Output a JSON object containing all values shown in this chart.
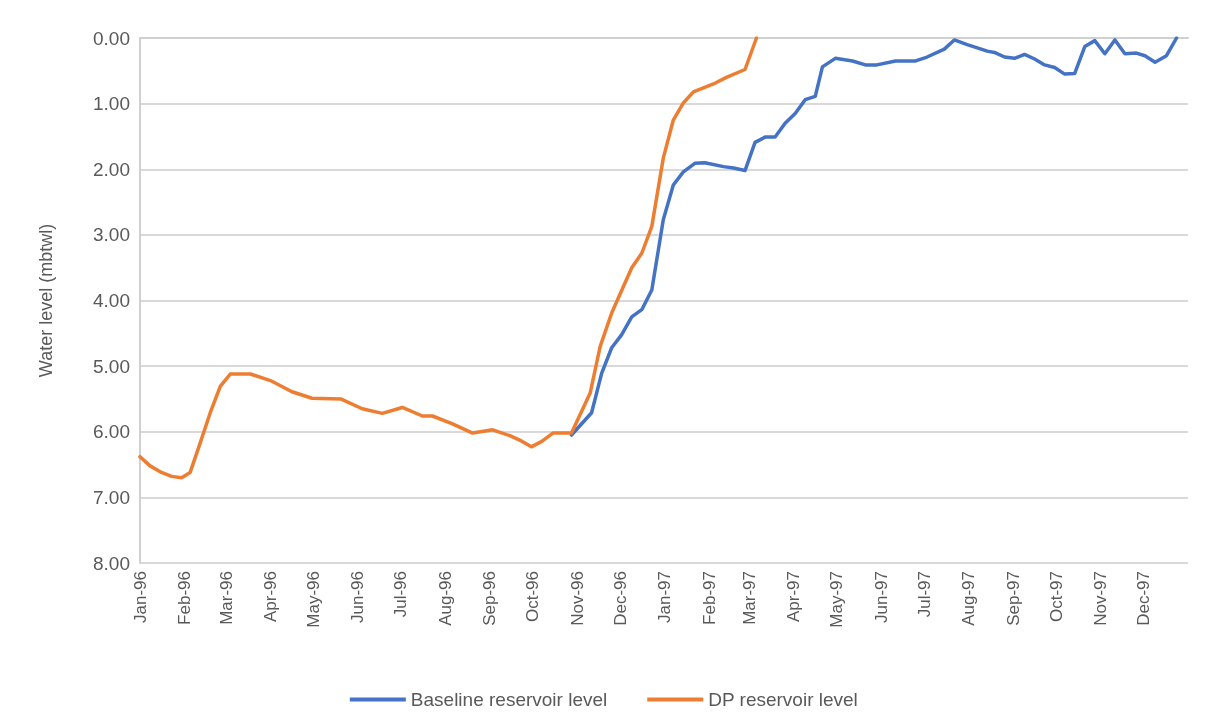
{
  "chart_data": {
    "type": "line",
    "ylabel": "Water level (mbtwl)",
    "ylim": [
      8,
      0
    ],
    "yticks": [
      {
        "value": 0,
        "label": "0.00"
      },
      {
        "value": 1,
        "label": "1.00"
      },
      {
        "value": 2,
        "label": "2.00"
      },
      {
        "value": 3,
        "label": "3.00"
      },
      {
        "value": 4,
        "label": "4.00"
      },
      {
        "value": 5,
        "label": "5.00"
      },
      {
        "value": 6,
        "label": "6.00"
      },
      {
        "value": 7,
        "label": "7.00"
      },
      {
        "value": 8,
        "label": "8.00"
      }
    ],
    "xlim": [
      "1996-01-01",
      "1998-01-01"
    ],
    "xticks": [
      {
        "value": "1996-01-01",
        "label": "Jan-96"
      },
      {
        "value": "1996-02-01",
        "label": "Feb-96"
      },
      {
        "value": "1996-03-01",
        "label": "Mar-96"
      },
      {
        "value": "1996-04-01",
        "label": "Apr-96"
      },
      {
        "value": "1996-05-01",
        "label": "May-96"
      },
      {
        "value": "1996-06-01",
        "label": "Jun-96"
      },
      {
        "value": "1996-07-01",
        "label": "Jul-96"
      },
      {
        "value": "1996-08-01",
        "label": "Aug-96"
      },
      {
        "value": "1996-09-01",
        "label": "Sep-96"
      },
      {
        "value": "1996-10-01",
        "label": "Oct-96"
      },
      {
        "value": "1996-11-01",
        "label": "Nov-96"
      },
      {
        "value": "1996-12-01",
        "label": "Dec-96"
      },
      {
        "value": "1997-01-01",
        "label": "Jan-97"
      },
      {
        "value": "1997-02-01",
        "label": "Feb-97"
      },
      {
        "value": "1997-03-01",
        "label": "Mar-97"
      },
      {
        "value": "1997-04-01",
        "label": "Apr-97"
      },
      {
        "value": "1997-05-01",
        "label": "May-97"
      },
      {
        "value": "1997-06-01",
        "label": "Jun-97"
      },
      {
        "value": "1997-07-01",
        "label": "Jul-97"
      },
      {
        "value": "1997-08-01",
        "label": "Aug-97"
      },
      {
        "value": "1997-09-01",
        "label": "Sep-97"
      },
      {
        "value": "1997-10-01",
        "label": "Oct-97"
      },
      {
        "value": "1997-11-01",
        "label": "Nov-97"
      },
      {
        "value": "1997-12-01",
        "label": "Dec-97"
      }
    ],
    "grid": "y",
    "legend": "bottom",
    "marker": "none",
    "line_style": "solid",
    "series": [
      {
        "name": "Baseline reservoir level",
        "color": "#4472c4",
        "x": [
          "1996-10-28",
          "1996-11-11",
          "1996-11-18",
          "1996-11-25",
          "1996-12-02",
          "1996-12-09",
          "1996-12-16",
          "1996-12-23",
          "1996-12-31",
          "1997-01-07",
          "1997-01-14",
          "1997-01-22",
          "1997-01-29",
          "1997-02-11",
          "1997-02-18",
          "1997-02-26",
          "1997-03-05",
          "1997-03-12",
          "1997-03-19",
          "1997-03-26",
          "1997-04-02",
          "1997-04-09",
          "1997-04-16",
          "1997-04-21",
          "1997-04-30",
          "1997-05-12",
          "1997-05-21",
          "1997-05-29",
          "1997-06-11",
          "1997-06-25",
          "1997-07-03",
          "1997-07-15",
          "1997-07-22",
          "1997-07-31",
          "1997-08-14",
          "1997-08-19",
          "1997-08-26",
          "1997-09-02",
          "1997-09-09",
          "1997-09-16",
          "1997-09-23",
          "1997-09-30",
          "1997-10-07",
          "1997-10-14",
          "1997-10-21",
          "1997-10-28",
          "1997-11-04",
          "1997-11-11",
          "1997-11-18",
          "1997-11-26",
          "1997-12-02",
          "1997-12-09",
          "1997-12-17",
          "1997-12-24"
        ],
        "values": [
          6.05,
          5.71,
          5.11,
          4.72,
          4.52,
          4.25,
          4.14,
          3.84,
          2.77,
          2.24,
          2.04,
          1.91,
          1.9,
          1.96,
          1.98,
          2.02,
          1.59,
          1.51,
          1.51,
          1.3,
          1.15,
          0.94,
          0.89,
          0.44,
          0.31,
          0.35,
          0.41,
          0.41,
          0.35,
          0.35,
          0.29,
          0.17,
          0.03,
          0.1,
          0.2,
          0.22,
          0.29,
          0.31,
          0.25,
          0.32,
          0.41,
          0.45,
          0.55,
          0.54,
          0.13,
          0.04,
          0.24,
          0.03,
          0.24,
          0.23,
          0.27,
          0.37,
          0.27,
          0.0
        ]
      },
      {
        "name": "DP reservoir level",
        "color": "#ed7d31",
        "x": [
          "1996-01-01",
          "1996-01-08",
          "1996-01-16",
          "1996-01-23",
          "1996-01-30",
          "1996-02-05",
          "1996-02-12",
          "1996-02-19",
          "1996-02-26",
          "1996-03-04",
          "1996-03-18",
          "1996-04-01",
          "1996-04-16",
          "1996-04-30",
          "1996-05-20",
          "1996-06-04",
          "1996-06-18",
          "1996-07-02",
          "1996-07-16",
          "1996-07-23",
          "1996-08-06",
          "1996-08-20",
          "1996-09-03",
          "1996-09-15",
          "1996-09-23",
          "1996-09-30",
          "1996-10-07",
          "1996-10-15",
          "1996-10-28",
          "1996-11-10",
          "1996-11-17",
          "1996-11-25",
          "1996-12-09",
          "1996-12-16",
          "1996-12-23",
          "1996-12-31",
          "1997-01-07",
          "1997-01-14",
          "1997-01-21",
          "1997-02-04",
          "1997-02-13",
          "1997-02-26",
          "1997-03-06"
        ],
        "values": [
          6.38,
          6.52,
          6.62,
          6.68,
          6.7,
          6.62,
          6.17,
          5.71,
          5.31,
          5.12,
          5.12,
          5.22,
          5.39,
          5.49,
          5.5,
          5.65,
          5.72,
          5.63,
          5.76,
          5.76,
          5.88,
          6.02,
          5.97,
          6.06,
          6.14,
          6.23,
          6.15,
          6.02,
          6.02,
          5.41,
          4.7,
          4.19,
          3.5,
          3.28,
          2.87,
          1.83,
          1.25,
          0.99,
          0.82,
          0.7,
          0.6,
          0.48,
          0.0
        ]
      }
    ]
  }
}
